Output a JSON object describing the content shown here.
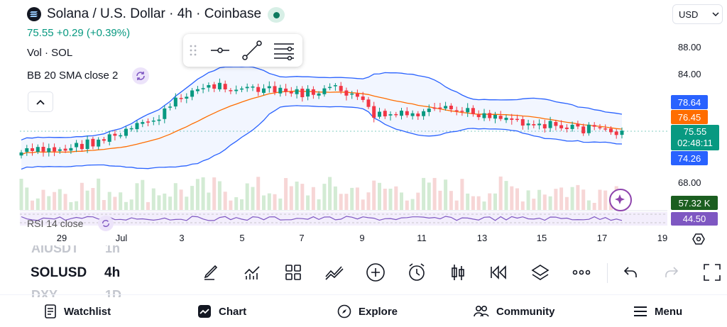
{
  "header": {
    "title": "Solana / U.S. Dollar · 4h · Coinbase",
    "price_line": "75.55  +0.29 (+0.39%)",
    "currency": "USD"
  },
  "indicators": {
    "volume": "Vol · SOL",
    "bollinger": "BB 20 SMA close 2",
    "rsi": "RSI 14 close"
  },
  "price_axis": {
    "ticks": [
      "88.00",
      "84.00",
      "68.00"
    ],
    "tags": {
      "upper_band": "78.64",
      "middle_band": "76.45",
      "last_price": "75.55",
      "countdown": "02:48:11",
      "lower_band": "74.26",
      "volume": "57.32 K",
      "rsi": "44.50"
    },
    "colors": {
      "upper": "#2962ff",
      "middle": "#ff6d00",
      "last": "#089981",
      "volume": "#1b5e20",
      "rsi": "#7e57c2"
    }
  },
  "time_axis": [
    "29",
    "Jul",
    "3",
    "5",
    "7",
    "9",
    "11",
    "13",
    "15",
    "17",
    "19"
  ],
  "symbol_switcher": {
    "prev_symbol": "AIUSDT",
    "prev_interval": "1h",
    "symbol": "SOLUSD",
    "interval": "4h",
    "next_symbol": "DXY",
    "next_interval": "1D"
  },
  "toolbar_icons": [
    "pencil-icon",
    "indicators-icon",
    "grid-icon",
    "compare-icon",
    "plus-circle-icon",
    "alarm-icon",
    "candles-icon",
    "replay-icon",
    "layers-icon",
    "more-icon",
    "undo-icon",
    "redo-icon",
    "fullscreen-icon"
  ],
  "bottom_nav": {
    "watchlist": "Watchlist",
    "chart": "Chart",
    "explore": "Explore",
    "community": "Community",
    "menu": "Menu"
  }
}
